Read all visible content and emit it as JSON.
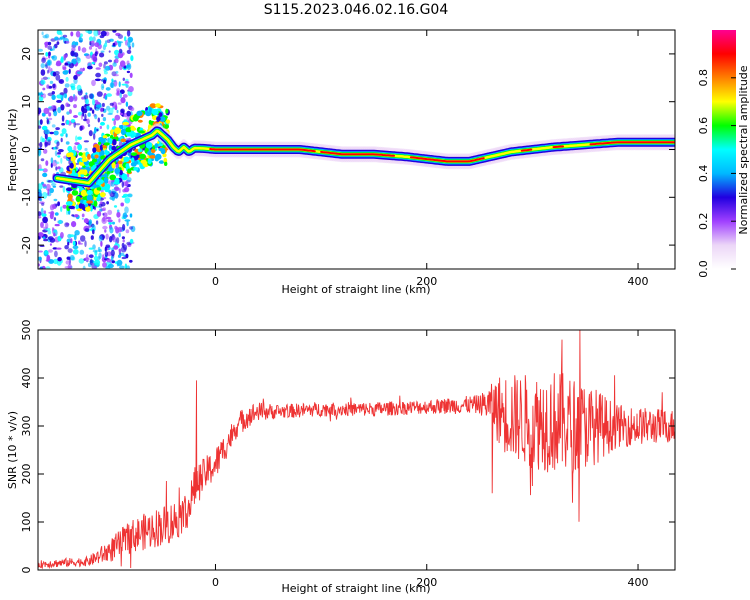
{
  "title": "S115.2023.046.02.16.G04",
  "chart_data": [
    {
      "type": "heatmap",
      "xlabel": "Height of straight line (km)",
      "ylabel": "Frequency (Hz)",
      "xlim": [
        -168,
        435
      ],
      "ylim": [
        -25,
        25
      ],
      "x_ticks": [
        {
          "value": 0,
          "label": "0"
        },
        {
          "value": 200,
          "label": "200"
        },
        {
          "value": 400,
          "label": "400"
        }
      ],
      "y_ticks": [
        {
          "value": 20,
          "label": "20"
        },
        {
          "value": 10,
          "label": "10"
        },
        {
          "value": 0,
          "label": "0"
        },
        {
          "value": -10,
          "label": "-10"
        },
        {
          "value": -20,
          "label": "-20"
        }
      ],
      "ridge": {
        "x": [
          -150,
          -120,
          -100,
          -80,
          -60,
          -55,
          -45,
          -40,
          -35,
          -30,
          -25,
          -20,
          -10,
          0,
          20,
          50,
          80,
          100,
          120,
          150,
          180,
          200,
          220,
          240,
          260,
          280,
          300,
          320,
          350,
          380,
          400,
          435
        ],
        "freq": [
          -6,
          -7,
          -2,
          1,
          3,
          4,
          2,
          0.5,
          -0.5,
          0.5,
          -0.5,
          0.3,
          0.2,
          0,
          0,
          0,
          0,
          -0.5,
          -1,
          -1,
          -1.5,
          -2,
          -2.5,
          -2.5,
          -1.5,
          -0.5,
          0,
          0.5,
          1,
          1.5,
          1.5,
          1.5
        ]
      },
      "colorbar": {
        "label": "Normalized spectral amplitude",
        "range": [
          0,
          1
        ],
        "ticks": [
          {
            "value": 0.0,
            "label": "0.0"
          },
          {
            "value": 0.2,
            "label": "0.2"
          },
          {
            "value": 0.4,
            "label": "0.4"
          },
          {
            "value": 0.6,
            "label": "0.6"
          },
          {
            "value": 0.8,
            "label": "0.8"
          }
        ],
        "colormap": [
          "#ffffff",
          "#ecd6f7",
          "#a040ff",
          "#2000e0",
          "#00b8ff",
          "#00ffff",
          "#00ff00",
          "#ffff00",
          "#ff8000",
          "#ff0000",
          "#ff0090"
        ]
      }
    },
    {
      "type": "line",
      "xlabel": "Height of straight line (km)",
      "ylabel": "SNR (10 * v/v)",
      "xlim": [
        -168,
        435
      ],
      "ylim": [
        0,
        500
      ],
      "color": "#ee3333",
      "x_ticks": [
        {
          "value": 0,
          "label": "0"
        },
        {
          "value": 200,
          "label": "200"
        },
        {
          "value": 400,
          "label": "400"
        }
      ],
      "y_ticks": [
        {
          "value": 500,
          "label": "500"
        },
        {
          "value": 400,
          "label": "400"
        },
        {
          "value": 300,
          "label": "300"
        },
        {
          "value": 200,
          "label": "200"
        },
        {
          "value": 100,
          "label": "100"
        },
        {
          "value": 0,
          "label": "0"
        }
      ],
      "envelope": {
        "x": [
          -168,
          -120,
          -100,
          -80,
          -60,
          -40,
          -25,
          -20,
          -10,
          0,
          10,
          20,
          30,
          40,
          60,
          100,
          150,
          200,
          250,
          260,
          270,
          280,
          300,
          320,
          340,
          360,
          380,
          400,
          435
        ],
        "mean": [
          12,
          18,
          40,
          70,
          85,
          100,
          130,
          170,
          200,
          220,
          260,
          300,
          320,
          330,
          330,
          335,
          335,
          340,
          345,
          345,
          330,
          320,
          310,
          310,
          300,
          300,
          300,
          300,
          300
        ],
        "spread": [
          8,
          10,
          25,
          35,
          40,
          45,
          40,
          45,
          35,
          35,
          30,
          25,
          25,
          20,
          15,
          15,
          15,
          15,
          20,
          40,
          80,
          90,
          100,
          110,
          100,
          80,
          45,
          40,
          35
        ]
      },
      "spikes": [
        {
          "x": -18,
          "y": 395
        },
        {
          "x": 262,
          "y": 160
        },
        {
          "x": 300,
          "y": 175
        },
        {
          "x": 328,
          "y": 480
        },
        {
          "x": 338,
          "y": 140
        },
        {
          "x": 345,
          "y": 500
        }
      ]
    }
  ]
}
